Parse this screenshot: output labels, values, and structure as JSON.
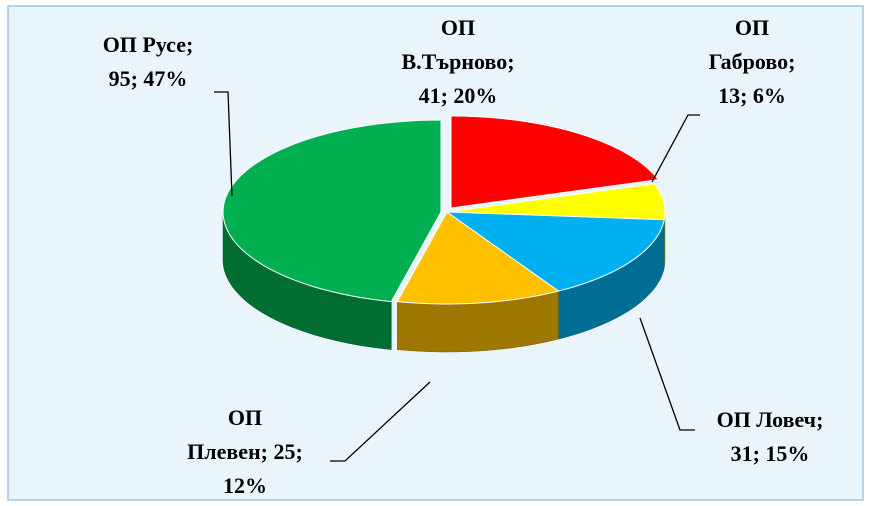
{
  "chart_data": {
    "type": "pie3d",
    "values": [
      41,
      13,
      31,
      25,
      95
    ],
    "value_labels": [
      [
        "ОП",
        "В.Търново;",
        "41; 20%"
      ],
      [
        "ОП",
        "Габрово;",
        "13; 6%"
      ],
      [
        "ОП Ловеч;",
        "31; 15%"
      ],
      [
        "ОП",
        "Плевен; 25;",
        "12%"
      ],
      [
        "ОП Русе;",
        "95; 47%"
      ]
    ],
    "colors": [
      "#ff0000",
      "#ffff00",
      "#00b0f0",
      "#ffc000",
      "#00b050"
    ]
  }
}
